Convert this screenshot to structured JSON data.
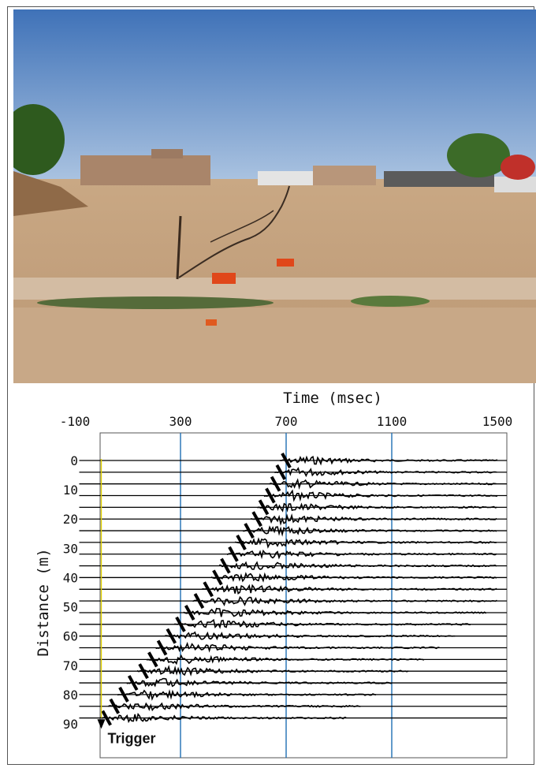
{
  "photo": {
    "description_icon": "field-photo"
  },
  "chart_data": {
    "type": "line",
    "title": "",
    "xlabel": "Time (msec)",
    "ylabel": "Distance (m)",
    "xlim": [
      -100,
      1600
    ],
    "ylim": [
      -5,
      97
    ],
    "x_ticks": [
      "-100",
      "300",
      "700",
      "1100",
      "1500"
    ],
    "y_ticks": [
      "0",
      "10",
      "20",
      "30",
      "40",
      "50",
      "60",
      "70",
      "80",
      "90"
    ],
    "gridlines_x": [
      300,
      700,
      1100
    ],
    "trigger": {
      "label": "Trigger",
      "time": 0,
      "distance": 89
    },
    "traces": {
      "distances": [
        0,
        4,
        8,
        12,
        16,
        20,
        24,
        28,
        32,
        36,
        40,
        44,
        48,
        52,
        56,
        60,
        64,
        68,
        72,
        76,
        80,
        84,
        88
      ],
      "first_break_msec": [
        700,
        680,
        660,
        640,
        615,
        590,
        560,
        530,
        500,
        470,
        440,
        405,
        370,
        335,
        300,
        265,
        230,
        195,
        160,
        120,
        85,
        50,
        20
      ]
    },
    "colors": {
      "gridline": "#1f6fb4",
      "trigger_line": "#e0d100",
      "trace": "#000000"
    }
  }
}
